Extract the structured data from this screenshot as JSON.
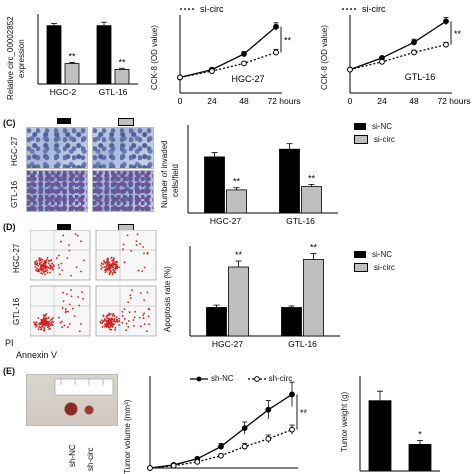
{
  "panels": {
    "A": {
      "ylabel_line1": "Relative circ_00002852",
      "ylabel_line2": "expression",
      "categories": [
        "HGC-2",
        "GTL-16"
      ],
      "sig": [
        "**",
        "**"
      ]
    },
    "B1": {
      "ylabel": "CCK-8 (OD value)",
      "cell_line": "HGC-27",
      "legend": "si-circ",
      "sig": "**",
      "xticks": [
        "0",
        "24",
        "48",
        "72 hours"
      ]
    },
    "B2": {
      "ylabel": "CCK-8 (OD value)",
      "cell_line": "GTL-16",
      "legend": "si-circ",
      "sig": "**",
      "xticks": [
        "0",
        "24",
        "48",
        "72 hours"
      ]
    },
    "C": {
      "label": "(C)",
      "row_labels": [
        "HGC-27",
        "GTL-16"
      ],
      "ylabel_line1": "Number of invaded",
      "ylabel_line2": "cells/field",
      "categories": [
        "HGC-27",
        "GTL-16"
      ],
      "legend": [
        "si-NC",
        "si-circ"
      ],
      "sig": [
        "**",
        "**"
      ]
    },
    "D": {
      "label": "(D)",
      "row_labels": [
        "HGC-27",
        "GTL-16"
      ],
      "axis_y": "PI",
      "axis_x": "Annexin V",
      "ylabel": "Apoptosis rate (%)",
      "categories": [
        "HGC-27",
        "GTL-16"
      ],
      "legend": [
        "si-NC",
        "si-circ"
      ],
      "sig": [
        "**",
        "**"
      ]
    },
    "E": {
      "label": "(E)",
      "photo_labels": [
        "sh-NC",
        "sh-circ"
      ],
      "volume_ylabel": "Tumor volume (mm³)",
      "legend": [
        "sh-NC",
        "sh-circ"
      ],
      "volume_sig": "**",
      "weight_ylabel": "Tumor weight (g)",
      "weight_sig": "*"
    }
  },
  "chart_data": [
    {
      "id": "A",
      "type": "bar",
      "categories": [
        "HGC-2",
        "GTL-16"
      ],
      "series": [
        {
          "color": "#000000",
          "values": [
            1.0,
            1.0
          ],
          "errors": [
            0.04,
            0.06
          ]
        },
        {
          "color": "#bfbfbf",
          "values": [
            0.35,
            0.25
          ],
          "errors": [
            0.02,
            0.02
          ]
        }
      ],
      "ylim": [
        0,
        1.2
      ]
    },
    {
      "id": "B1",
      "type": "line",
      "x": [
        0,
        24,
        48,
        72
      ],
      "series": [
        {
          "color": "#000000",
          "style": "solid",
          "values": [
            0.2,
            0.3,
            0.5,
            0.85
          ],
          "errors": [
            0.01,
            0.02,
            0.03,
            0.05
          ]
        },
        {
          "name": "si-circ",
          "color": "#000000",
          "style": "dotted",
          "values": [
            0.2,
            0.28,
            0.38,
            0.52
          ],
          "errors": [
            0.01,
            0.02,
            0.02,
            0.04
          ]
        }
      ],
      "ylim": [
        0,
        1.0
      ]
    },
    {
      "id": "B2",
      "type": "line",
      "x": [
        0,
        24,
        48,
        72
      ],
      "series": [
        {
          "color": "#000000",
          "style": "solid",
          "values": [
            0.3,
            0.45,
            0.65,
            0.92
          ],
          "errors": [
            0.02,
            0.02,
            0.04,
            0.05
          ]
        },
        {
          "name": "si-circ",
          "color": "#000000",
          "style": "dotted",
          "values": [
            0.3,
            0.4,
            0.52,
            0.62
          ],
          "errors": [
            0.02,
            0.02,
            0.03,
            0.03
          ]
        }
      ],
      "ylim": [
        0,
        1.0
      ]
    },
    {
      "id": "C",
      "type": "bar",
      "categories": [
        "HGC-27",
        "GTL-16"
      ],
      "series": [
        {
          "name": "si-NC",
          "color": "#000000",
          "values": [
            51,
            58
          ],
          "errors": [
            4,
            5
          ]
        },
        {
          "name": "si-circ",
          "color": "#bfbfbf",
          "values": [
            21,
            24
          ],
          "errors": [
            2,
            2
          ]
        }
      ],
      "ylim": [
        0,
        80
      ]
    },
    {
      "id": "D",
      "type": "bar",
      "categories": [
        "HGC-27",
        "GTL-16"
      ],
      "series": [
        {
          "name": "si-NC",
          "color": "#000000",
          "values": [
            9.5,
            9.5
          ],
          "errors": [
            0.8,
            0.5
          ]
        },
        {
          "name": "si-circ",
          "color": "#bfbfbf",
          "values": [
            23,
            25.5
          ],
          "errors": [
            2,
            2
          ]
        }
      ],
      "ylim": [
        0,
        30
      ]
    },
    {
      "id": "E_volume",
      "type": "line",
      "x": [
        0,
        1,
        2,
        3,
        4,
        5,
        6
      ],
      "series": [
        {
          "name": "sh-NC",
          "color": "#000000",
          "style": "solid",
          "values": [
            0,
            20,
            60,
            140,
            260,
            380,
            480
          ],
          "errors": [
            0,
            5,
            10,
            20,
            40,
            60,
            80
          ]
        },
        {
          "name": "sh-circ",
          "color": "#000000",
          "style": "dotted",
          "values": [
            0,
            15,
            40,
            80,
            140,
            190,
            250
          ],
          "errors": [
            0,
            4,
            8,
            12,
            20,
            25,
            30
          ]
        }
      ],
      "ylim": [
        0,
        600
      ]
    },
    {
      "id": "E_weight",
      "type": "bar",
      "categories": [
        "sh-NC",
        "sh-circ"
      ],
      "series": [
        {
          "color": "#000000",
          "values": [
            0.37,
            0.14
          ],
          "errors": [
            0.05,
            0.02
          ]
        }
      ],
      "ylim": [
        0,
        0.5
      ]
    }
  ]
}
